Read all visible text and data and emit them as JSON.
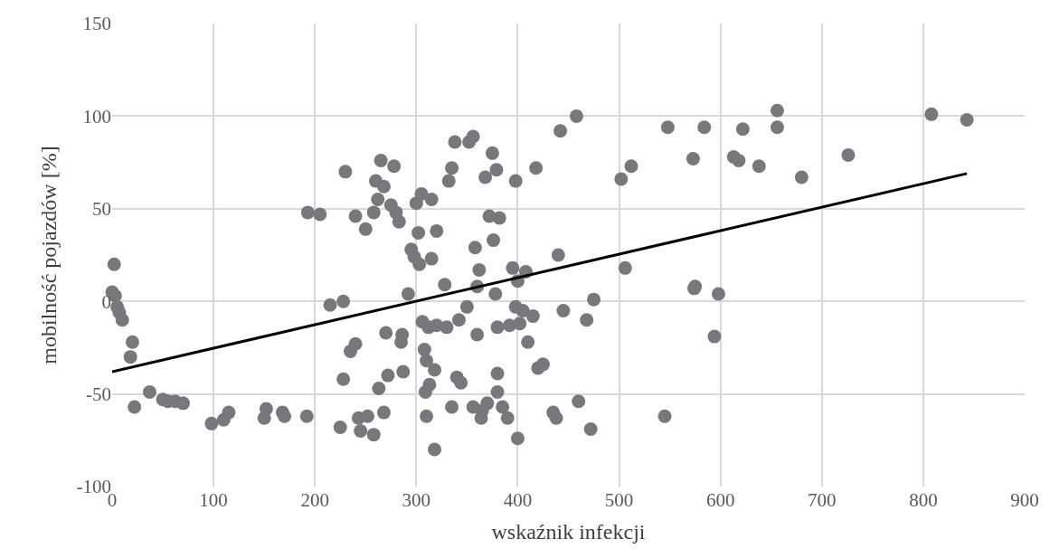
{
  "chart_data": {
    "type": "scatter",
    "xlabel": "wskaźnik infekcji",
    "ylabel": "mobilność pojazdów [%]",
    "xlim": [
      0,
      900
    ],
    "xticks": [
      0,
      100,
      200,
      300,
      400,
      500,
      600,
      700,
      800,
      900
    ],
    "ylim": [
      -100,
      150
    ],
    "yticks": [
      -100,
      -50,
      0,
      50,
      100,
      150
    ],
    "grid": true,
    "series": [
      {
        "color": "#76787c",
        "marker": "circle",
        "x": [
          0,
          3,
          5,
          7,
          10,
          2,
          20,
          18,
          22,
          37,
          50,
          55,
          62,
          70,
          98,
          110,
          115,
          150,
          152,
          168,
          170,
          192,
          193,
          205,
          215,
          228,
          230,
          225,
          228,
          235,
          240,
          240,
          243,
          245,
          250,
          252,
          258,
          260,
          262,
          265,
          268,
          258,
          263,
          268,
          270,
          272,
          275,
          278,
          280,
          283,
          285,
          286,
          287,
          292,
          295,
          298,
          300,
          302,
          303,
          305,
          306,
          308,
          309,
          310,
          312,
          313,
          315,
          315,
          318,
          318,
          320,
          320,
          310,
          328,
          330,
          332,
          335,
          335,
          338,
          340,
          342,
          344,
          350,
          352,
          356,
          356,
          358,
          360,
          360,
          362,
          364,
          365,
          368,
          370,
          372,
          375,
          376,
          378,
          379,
          380,
          380,
          382,
          380,
          385,
          390,
          392,
          395,
          398,
          398,
          400,
          400,
          402,
          405,
          408,
          410,
          415,
          418,
          420,
          425,
          435,
          438,
          440,
          442,
          445,
          458,
          460,
          468,
          472,
          475,
          502,
          506,
          512,
          545,
          548,
          573,
          574,
          575,
          584,
          594,
          598,
          613,
          618,
          622,
          638,
          656,
          656,
          680,
          726,
          808,
          843
        ],
        "values": [
          5,
          3,
          -3,
          -6,
          -10,
          20,
          -22,
          -30,
          -57,
          -49,
          -53,
          -54,
          -54,
          -55,
          -66,
          -64,
          -60,
          -63,
          -58,
          -60,
          -62,
          -62,
          48,
          47,
          -2,
          0,
          70,
          -68,
          -42,
          -27,
          46,
          -23,
          -63,
          -70,
          39,
          -62,
          48,
          65,
          55,
          76,
          62,
          -72,
          -47,
          -60,
          -17,
          -40,
          52,
          73,
          48,
          43,
          -22,
          -18,
          -38,
          4,
          28,
          24,
          53,
          37,
          20,
          58,
          -11,
          -26,
          -49,
          -32,
          -14,
          -45,
          23,
          55,
          -37,
          -80,
          38,
          -13,
          -62,
          9,
          -14,
          65,
          72,
          -57,
          86,
          -41,
          -10,
          -44,
          -3,
          86,
          89,
          -57,
          29,
          -18,
          8,
          17,
          -63,
          -59,
          67,
          -55,
          46,
          80,
          33,
          4,
          71,
          -39,
          -49,
          45,
          -14,
          -57,
          -63,
          -13,
          18,
          65,
          -3,
          11,
          -74,
          -12,
          -5,
          16,
          -22,
          -8,
          72,
          -36,
          -34,
          -60,
          -63,
          25,
          92,
          -5,
          100,
          -54,
          -10,
          -69,
          1,
          66,
          18,
          73,
          -62,
          94,
          77,
          7,
          8,
          94,
          -19,
          4,
          78,
          76,
          93,
          73,
          103,
          94,
          67,
          79,
          101,
          98
        ]
      },
      {
        "type": "line",
        "color": "#000000",
        "marker": "none",
        "line_style": "solid",
        "x": [
          0,
          843
        ],
        "values": [
          -38,
          69
        ]
      }
    ]
  }
}
